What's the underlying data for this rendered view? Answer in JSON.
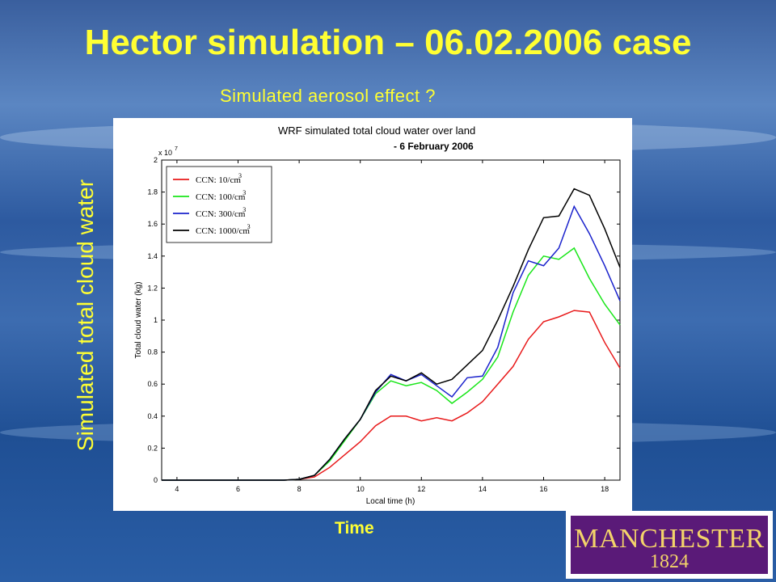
{
  "slide": {
    "title": "Hector simulation – 06.02.2006 case",
    "subtitle": "Simulated aerosol effect ?",
    "y_title": "Simulated total cloud water",
    "x_title": "Time",
    "logo_text": "MANCHESTER",
    "logo_year": "1824"
  },
  "colors": {
    "title": "#ffff33",
    "background": "#2d5aa0",
    "logo_bg": "#5a1a78",
    "logo_text": "#f3d36a"
  },
  "chart_data": {
    "type": "line",
    "title": "WRF simulated total cloud water over land",
    "subtitle": "- 6 February 2006",
    "xlabel": "Local time (h)",
    "ylabel": "Total cloud water (kg)",
    "y_multiplier": "x 10",
    "y_multiplier_exp": "7",
    "xlim": [
      3.5,
      18.5
    ],
    "ylim": [
      0,
      2
    ],
    "xticks": [
      4,
      6,
      8,
      10,
      12,
      14,
      16,
      18
    ],
    "yticks": [
      0,
      0.2,
      0.4,
      0.6,
      0.8,
      1,
      1.2,
      1.4,
      1.6,
      1.8,
      2
    ],
    "ytick_labels": [
      "0",
      "0.2",
      "0.4",
      "0.6",
      "0.8",
      "1",
      "1.2",
      "1.4",
      "1.6",
      "1.8",
      "2"
    ],
    "legend_position": "top-left",
    "x": [
      3.5,
      7.5,
      8.0,
      8.5,
      9.0,
      9.5,
      10.0,
      10.5,
      11.0,
      11.5,
      12.0,
      12.5,
      13.0,
      13.5,
      14.0,
      14.5,
      15.0,
      15.5,
      16.0,
      16.5,
      17.0,
      17.5,
      18.0,
      18.5
    ],
    "series": [
      {
        "name": "CCN: 10/cm",
        "sup": "3",
        "color": "#e8191a",
        "values": [
          0,
          0,
          0.005,
          0.02,
          0.08,
          0.16,
          0.24,
          0.34,
          0.4,
          0.4,
          0.37,
          0.39,
          0.37,
          0.42,
          0.49,
          0.6,
          0.71,
          0.88,
          0.99,
          1.02,
          1.06,
          1.05,
          0.86,
          0.7
        ]
      },
      {
        "name": "CCN: 100/cm",
        "sup": "3",
        "color": "#19e619",
        "values": [
          0,
          0,
          0.005,
          0.03,
          0.12,
          0.25,
          0.38,
          0.54,
          0.62,
          0.59,
          0.61,
          0.56,
          0.48,
          0.55,
          0.63,
          0.77,
          1.05,
          1.28,
          1.4,
          1.38,
          1.45,
          1.26,
          1.1,
          0.97
        ]
      },
      {
        "name": "CCN: 300/cm",
        "sup": "3",
        "color": "#1a22cc",
        "values": [
          0,
          0,
          0.005,
          0.03,
          0.13,
          0.26,
          0.38,
          0.55,
          0.66,
          0.62,
          0.66,
          0.59,
          0.52,
          0.64,
          0.65,
          0.83,
          1.17,
          1.37,
          1.34,
          1.45,
          1.71,
          1.54,
          1.34,
          1.12
        ]
      },
      {
        "name": "CCN: 1000/cm",
        "sup": "3",
        "color": "#000000",
        "values": [
          0,
          0,
          0.005,
          0.03,
          0.13,
          0.26,
          0.38,
          0.56,
          0.65,
          0.62,
          0.67,
          0.6,
          0.63,
          0.72,
          0.81,
          1.0,
          1.21,
          1.44,
          1.64,
          1.65,
          1.82,
          1.78,
          1.57,
          1.33
        ]
      }
    ]
  }
}
